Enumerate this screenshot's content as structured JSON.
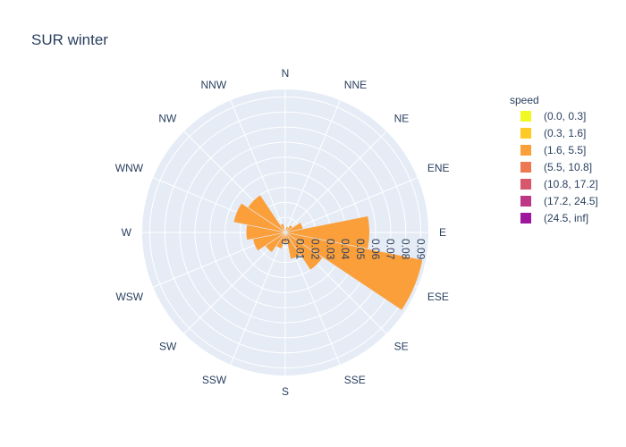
{
  "chart_data": {
    "type": "barpolar",
    "title": "SUR winter",
    "angular_axis": {
      "direction": "clockwise",
      "rotation_start": "north",
      "categories": [
        "N",
        "NNE",
        "NE",
        "ENE",
        "E",
        "ESE",
        "SE",
        "SSE",
        "S",
        "SSW",
        "SW",
        "WSW",
        "W",
        "WNW",
        "NW",
        "NNW"
      ]
    },
    "radial_axis": {
      "range": [
        0,
        0.095
      ],
      "tickvals": [
        0,
        0.01,
        0.02,
        0.03,
        0.04,
        0.05,
        0.06,
        0.07,
        0.08,
        0.09
      ],
      "ticktext": [
        "0",
        "0.01",
        "0.02",
        "0.03",
        "0.04",
        "0.05",
        "0.06",
        "0.07",
        "0.08",
        "0.09"
      ],
      "tick_angle_deg": 90
    },
    "legend": {
      "title": "speed",
      "position": "right",
      "entries": [
        {
          "name": "(0.0, 0.3]",
          "color": "#f0f921"
        },
        {
          "name": "(0.3, 1.6]",
          "color": "#fdca26"
        },
        {
          "name": "(1.6, 5.5]",
          "color": "#fb9f3a"
        },
        {
          "name": "(5.5, 10.8]",
          "color": "#ed7953"
        },
        {
          "name": "(10.8, 17.2]",
          "color": "#d8576b"
        },
        {
          "name": "(17.2, 24.5]",
          "color": "#bd3786"
        },
        {
          "name": "(24.5, inf]",
          "color": "#9c179e"
        }
      ]
    },
    "series": [
      {
        "name": "(1.6, 5.5]",
        "color": "#fb9f3a",
        "values": [
          0.002,
          0.004,
          0.006,
          0.012,
          0.056,
          0.093,
          0.03,
          0.018,
          0.007,
          0.011,
          0.016,
          0.022,
          0.026,
          0.035,
          0.03,
          0.006
        ]
      }
    ]
  }
}
